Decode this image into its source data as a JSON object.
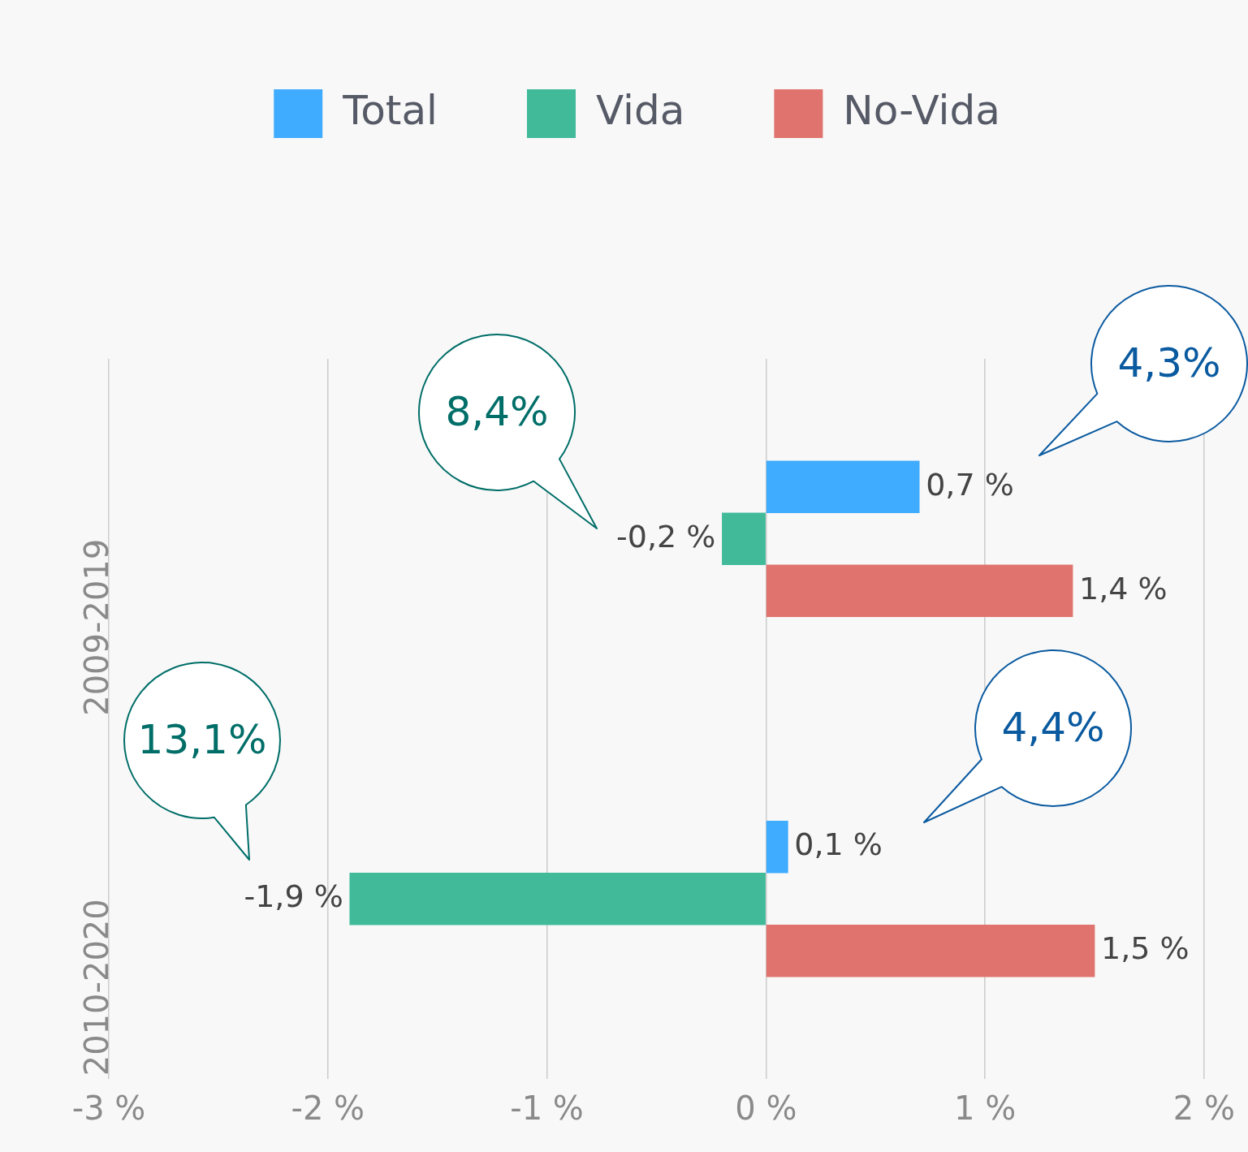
{
  "chart_data": {
    "type": "bar",
    "orientation": "horizontal",
    "categories": [
      "2009-2019",
      "2010-2020"
    ],
    "series": [
      {
        "name": "Total",
        "color": "#40acff",
        "values": [
          0.7,
          0.1
        ],
        "value_labels": [
          "0,7 %",
          "0,1 %"
        ]
      },
      {
        "name": "Vida",
        "color": "#41ba9a",
        "values": [
          -0.2,
          -1.9
        ],
        "value_labels": [
          "-0,2 %",
          "-1,9 %"
        ]
      },
      {
        "name": "No-Vida",
        "color": "#e0736d",
        "values": [
          1.4,
          1.5
        ],
        "value_labels": [
          "1,4 %",
          "1,5 %"
        ]
      }
    ],
    "xlim": [
      -3,
      2
    ],
    "xticks": [
      {
        "value": -3,
        "label": "-3 %"
      },
      {
        "value": -2,
        "label": "-2 %"
      },
      {
        "value": -1,
        "label": "-1 %"
      },
      {
        "value": 0,
        "label": "0 %"
      },
      {
        "value": 1,
        "label": "1 %"
      },
      {
        "value": 2,
        "label": "2 %"
      }
    ],
    "grid": "x",
    "legend": "top",
    "annotations": [
      "8,4%",
      "4,3%",
      "13,1%",
      "4,4%"
    ]
  }
}
